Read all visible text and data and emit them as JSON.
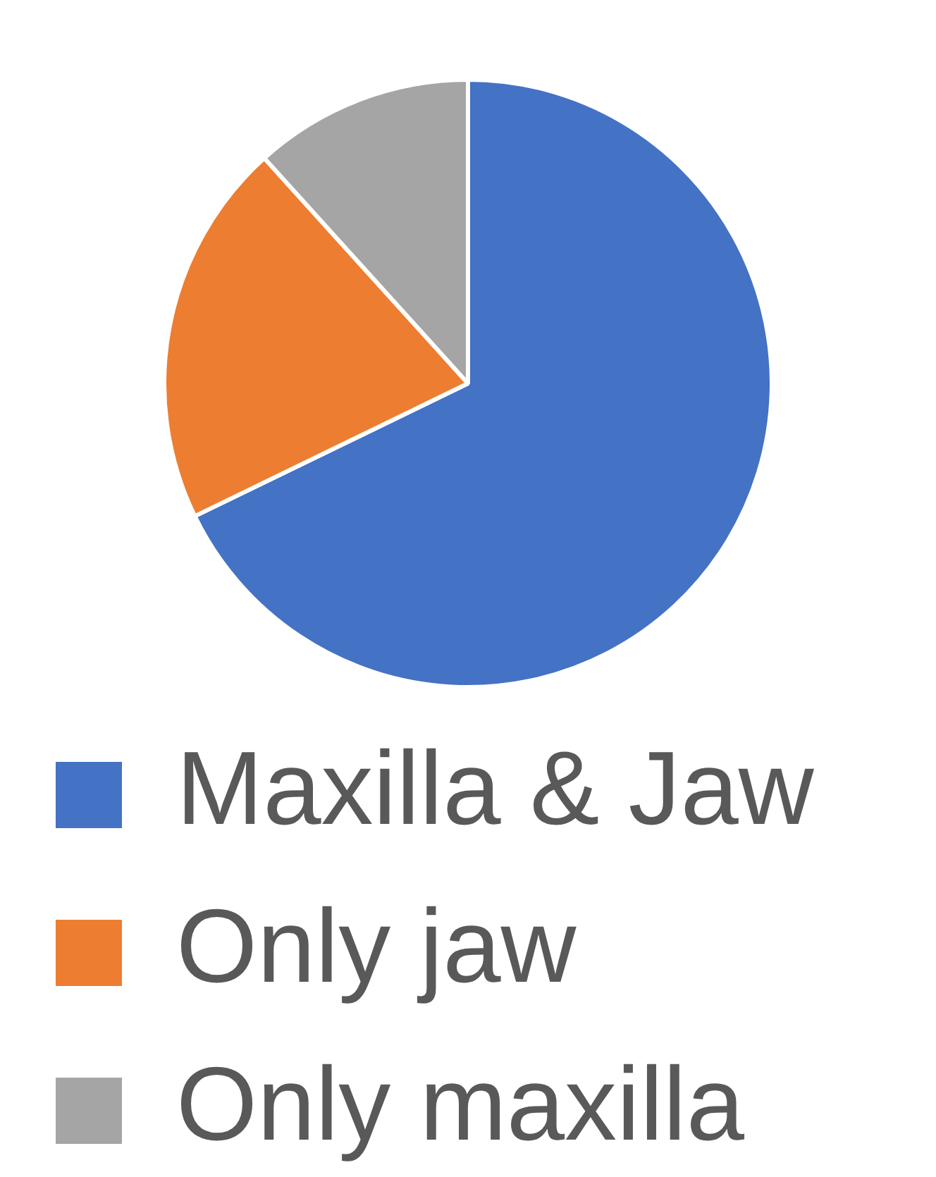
{
  "chart_data": {
    "type": "pie",
    "categories": [
      "Maxilla & Jaw",
      "Only jaw",
      "Only maxilla"
    ],
    "values": [
      67.8,
      20.5,
      11.7
    ],
    "colors": [
      "#4472c4",
      "#ed7d31",
      "#a5a5a5"
    ],
    "legend": "bottom"
  }
}
